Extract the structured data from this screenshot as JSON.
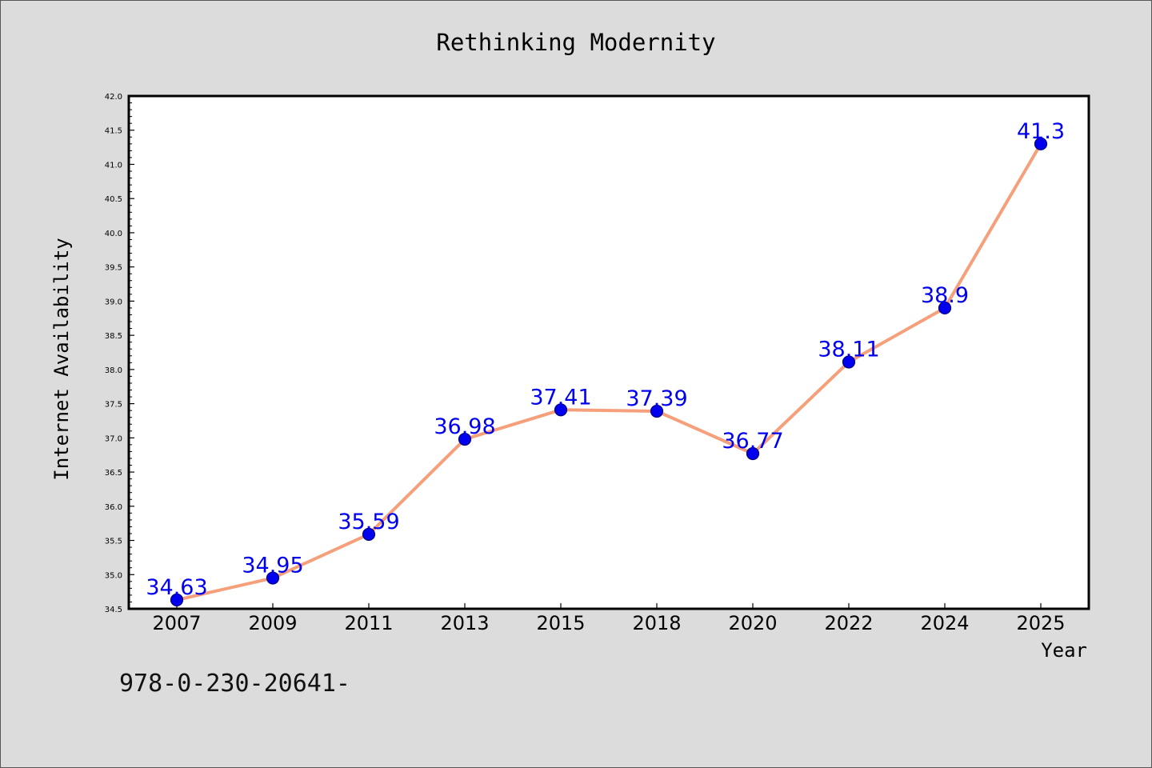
{
  "chart_data": {
    "type": "line",
    "title": "Rethinking Modernity",
    "xlabel": "Year",
    "ylabel": "Internet Availability",
    "categories": [
      "2007",
      "2009",
      "2011",
      "2013",
      "2015",
      "2018",
      "2020",
      "2022",
      "2024",
      "2025"
    ],
    "series": [
      {
        "values": [
          34.63,
          34.95,
          35.59,
          36.98,
          37.41,
          37.39,
          36.77,
          38.11,
          38.9,
          41.3
        ],
        "labels": [
          "34.63",
          "34.95",
          "35.59",
          "36.98",
          "37.41",
          "37.39",
          "36.77",
          "38.11",
          "38.9",
          "41.3"
        ]
      }
    ],
    "ylim": [
      34.5,
      42.0
    ],
    "yticks": [
      "34.5",
      "35.0",
      "35.5",
      "36.0",
      "36.5",
      "37.0",
      "37.5",
      "38.0",
      "38.5",
      "39.0",
      "39.5",
      "40.0",
      "40.5",
      "41.0",
      "41.5",
      "42.0"
    ],
    "grid": false,
    "legend": "none",
    "colors": {
      "line": "#f5a07a",
      "marker": "#0000ee",
      "marker_edge": "#000080",
      "data_label": "#0000ee",
      "plot_background": "#ffffff",
      "figure_background": "#dcdcdc"
    }
  },
  "footer": {
    "isbn": "978-0-230-20641-"
  }
}
